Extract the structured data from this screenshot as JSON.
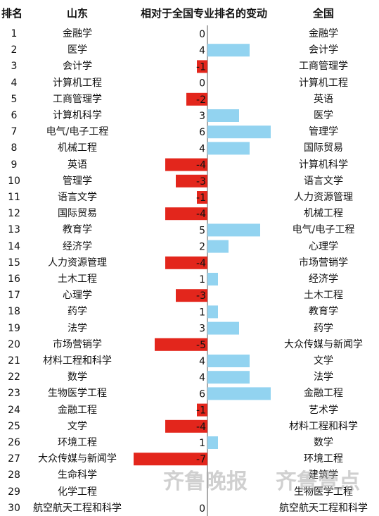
{
  "headers": {
    "rank": "排名",
    "shandong": "山东",
    "change": "相对于全国专业排名的变动",
    "national": "全国"
  },
  "colors": {
    "positive": "#92D3F0",
    "negative": "#E3261C",
    "axis": "#555555"
  },
  "watermark": {
    "brand": "齐鲁晚报",
    "brand2": "齐鲁壹点"
  },
  "chart_data": {
    "type": "bar",
    "orientation": "horizontal",
    "ranks": [
      1,
      2,
      3,
      4,
      5,
      6,
      7,
      8,
      9,
      10,
      11,
      12,
      13,
      14,
      15,
      16,
      17,
      18,
      19,
      20,
      21,
      22,
      23,
      24,
      25,
      26,
      27,
      28,
      29,
      30
    ],
    "categories": [
      "金融学",
      "医学",
      "会计学",
      "计算机工程",
      "工商管理学",
      "计算机科学",
      "电气/电子工程",
      "机械工程",
      "英语",
      "管理学",
      "语言文学",
      "国际贸易",
      "教育学",
      "经济学",
      "人力资源管理",
      "土木工程",
      "心理学",
      "药学",
      "法学",
      "市场营销学",
      "材料工程和科学",
      "数学",
      "生物医学工程",
      "金融工程",
      "文学",
      "环境工程",
      "大众传媒与新闻学",
      "生命科学",
      "化学工程",
      "航空航天工程和科学"
    ],
    "values": [
      0,
      4,
      -1,
      0,
      -2,
      3,
      6,
      4,
      -4,
      -3,
      -1,
      -4,
      5,
      2,
      -4,
      1,
      -3,
      1,
      3,
      -5,
      4,
      4,
      6,
      -1,
      -4,
      1,
      -7,
      null,
      null,
      0
    ],
    "value_labels": [
      "0",
      "4",
      "-1",
      "0",
      "-2",
      "3",
      "6",
      "4",
      "-4",
      "-3",
      "-1",
      "-4",
      "5",
      "2",
      "-4",
      "1",
      "-3",
      "1",
      "3",
      "-5",
      "4",
      "4",
      "6",
      "-1",
      "-4",
      "1",
      "-7",
      "",
      "",
      "0"
    ],
    "national_ranking": [
      "金融学",
      "会计学",
      "工商管理学",
      "计算机工程",
      "英语",
      "医学",
      "管理学",
      "国际贸易",
      "计算机科学",
      "语言文学",
      "人力资源管理",
      "机械工程",
      "电气/电子工程",
      "心理学",
      "市场营销学",
      "经济学",
      "土木工程",
      "教育学",
      "药学",
      "大众传媒与新闻学",
      "文学",
      "法学",
      "金融工程",
      "艺术学",
      "材料工程和科学",
      "数学",
      "环境工程",
      "建筑学",
      "生物医学工程",
      "航空航天工程和科学"
    ],
    "xlim": [
      -7,
      6
    ]
  }
}
